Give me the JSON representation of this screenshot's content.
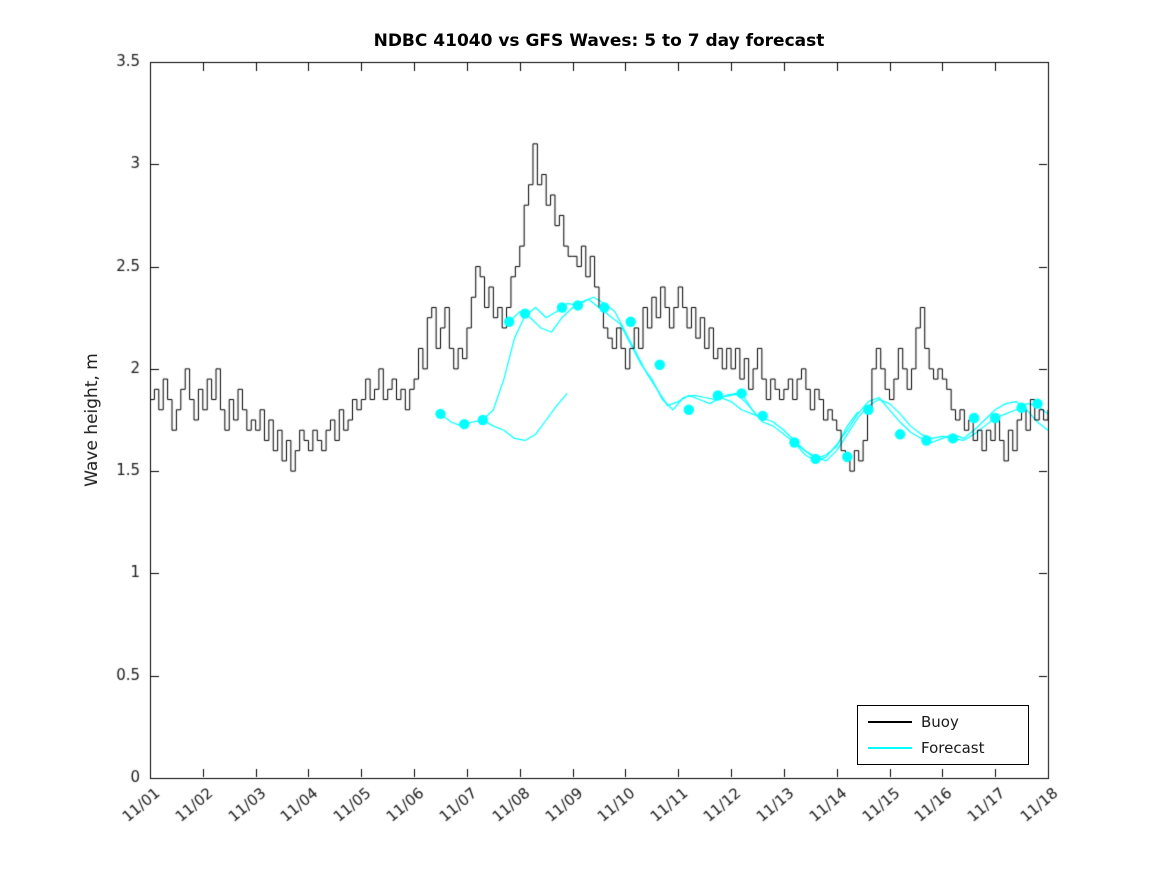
{
  "title": "NDBC 41040 vs GFS Waves: 5 to 7 day forecast",
  "colors": {
    "buoy": "#000000",
    "forecast": "#00ffff",
    "background": "#ffffff",
    "axes": "#000000"
  },
  "chart_data": {
    "type": "line",
    "title": "NDBC 41040 vs GFS Waves: 5 to 7 day forecast",
    "xlabel": "",
    "ylabel": "Wave height, m",
    "x_range": [
      0,
      17
    ],
    "y_range": [
      0,
      3.5
    ],
    "y_ticks": [
      0,
      0.5,
      1,
      1.5,
      2,
      2.5,
      3,
      3.5
    ],
    "x_tick_labels": [
      "11/01",
      "11/02",
      "11/03",
      "11/04",
      "11/05",
      "11/06",
      "11/07",
      "11/08",
      "11/09",
      "11/10",
      "11/11",
      "11/12",
      "11/13",
      "11/14",
      "11/15",
      "11/16",
      "11/17",
      "11/18"
    ],
    "grid": false,
    "legend": {
      "position": "bottom-right",
      "entries": [
        {
          "label": "Buoy",
          "color": "#000000"
        },
        {
          "label": "Forecast",
          "color": "#00ffff"
        }
      ]
    },
    "series": {
      "buoy": {
        "name": "Buoy",
        "color": "#000000",
        "units": "m",
        "start_day": 0,
        "samples_per_day": 12,
        "values": [
          1.85,
          1.9,
          1.8,
          1.95,
          1.85,
          1.7,
          1.8,
          1.9,
          2.0,
          1.85,
          1.75,
          1.9,
          1.8,
          1.95,
          1.85,
          2.0,
          1.8,
          1.7,
          1.85,
          1.75,
          1.9,
          1.8,
          1.7,
          1.75,
          1.7,
          1.8,
          1.65,
          1.75,
          1.6,
          1.7,
          1.55,
          1.65,
          1.5,
          1.6,
          1.7,
          1.65,
          1.6,
          1.7,
          1.65,
          1.6,
          1.7,
          1.75,
          1.65,
          1.8,
          1.7,
          1.75,
          1.85,
          1.8,
          1.85,
          1.95,
          1.85,
          1.9,
          2.0,
          1.85,
          1.9,
          1.95,
          1.85,
          1.9,
          1.8,
          1.9,
          1.95,
          2.1,
          2.0,
          2.25,
          2.3,
          2.1,
          2.2,
          2.3,
          2.1,
          2.0,
          2.1,
          2.05,
          2.2,
          2.35,
          2.5,
          2.45,
          2.3,
          2.4,
          2.25,
          2.3,
          2.2,
          2.3,
          2.45,
          2.5,
          2.6,
          2.8,
          2.9,
          3.1,
          2.9,
          2.95,
          2.8,
          2.85,
          2.7,
          2.75,
          2.6,
          2.55,
          2.55,
          2.5,
          2.6,
          2.45,
          2.55,
          2.4,
          2.3,
          2.2,
          2.15,
          2.1,
          2.2,
          2.1,
          2.0,
          2.1,
          2.2,
          2.1,
          2.3,
          2.2,
          2.35,
          2.25,
          2.4,
          2.3,
          2.2,
          2.3,
          2.4,
          2.3,
          2.2,
          2.3,
          2.15,
          2.25,
          2.1,
          2.2,
          2.05,
          2.1,
          2.0,
          2.1,
          2.0,
          2.1,
          1.95,
          2.05,
          1.9,
          2.0,
          2.1,
          1.95,
          1.85,
          1.95,
          1.9,
          1.85,
          1.9,
          1.95,
          1.85,
          1.95,
          2.0,
          1.9,
          1.8,
          1.9,
          1.85,
          1.75,
          1.8,
          1.75,
          1.7,
          1.6,
          1.55,
          1.5,
          1.6,
          1.55,
          1.65,
          1.8,
          2.0,
          2.1,
          2.0,
          1.9,
          1.85,
          1.95,
          2.1,
          2.0,
          1.9,
          2.0,
          2.2,
          2.3,
          2.1,
          2.0,
          1.95,
          2.0,
          1.95,
          1.9,
          1.8,
          1.75,
          1.8,
          1.7,
          1.75,
          1.65,
          1.7,
          1.6,
          1.7,
          1.65,
          1.75,
          1.65,
          1.55,
          1.7,
          1.6,
          1.75,
          1.8,
          1.7,
          1.85,
          1.75,
          1.8,
          1.75,
          1.8
        ]
      },
      "forecast": {
        "name": "Forecast",
        "color": "#00ffff",
        "units": "m",
        "segments": [
          {
            "x": [
              5.5,
              5.7,
              5.9,
              6.1,
              6.3,
              6.5,
              6.7,
              6.9,
              7.1,
              7.3,
              7.5,
              7.7,
              7.9
            ],
            "y": [
              1.78,
              1.74,
              1.72,
              1.74,
              1.75,
              1.72,
              1.7,
              1.66,
              1.65,
              1.68,
              1.75,
              1.82,
              1.88
            ]
          },
          {
            "x": [
              6.3,
              6.5,
              6.7,
              6.9,
              7.1,
              7.3,
              7.5,
              7.7,
              7.9,
              8.1,
              8.3,
              8.5,
              8.7,
              8.9,
              9.1,
              9.3,
              9.5,
              9.7,
              9.9,
              10.1,
              10.3,
              10.5,
              10.7,
              10.9,
              11.1,
              11.3,
              11.5
            ],
            "y": [
              1.75,
              1.8,
              1.95,
              2.15,
              2.26,
              2.3,
              2.25,
              2.28,
              2.32,
              2.31,
              2.34,
              2.3,
              2.26,
              2.22,
              2.12,
              2.02,
              1.95,
              1.85,
              1.8,
              1.86,
              1.87,
              1.86,
              1.85,
              1.87,
              1.88,
              1.83,
              1.77
            ]
          },
          {
            "x": [
              6.8,
              7.0,
              7.2,
              7.4,
              7.6,
              7.8,
              8.0,
              8.2,
              8.4,
              8.6,
              8.8,
              9.0,
              9.2,
              9.4,
              9.6,
              9.8,
              10.0,
              10.2,
              10.4,
              10.6,
              10.8,
              11.0,
              11.2,
              11.4,
              11.6,
              11.8,
              12.0,
              12.2,
              12.4,
              12.6,
              12.8,
              13.0,
              13.2,
              13.4
            ],
            "y": [
              2.23,
              2.28,
              2.25,
              2.2,
              2.18,
              2.25,
              2.3,
              2.33,
              2.35,
              2.32,
              2.28,
              2.18,
              2.08,
              1.98,
              1.9,
              1.82,
              1.84,
              1.87,
              1.85,
              1.83,
              1.86,
              1.87,
              1.88,
              1.8,
              1.74,
              1.72,
              1.68,
              1.64,
              1.6,
              1.56,
              1.58,
              1.62,
              1.72,
              1.79
            ]
          },
          {
            "x": [
              10.8,
              11.0,
              11.2,
              11.4,
              11.6,
              11.8,
              12.0,
              12.2,
              12.4,
              12.6,
              12.8,
              13.0,
              13.2,
              13.4,
              13.6,
              13.8,
              14.0,
              14.2,
              14.4,
              14.6,
              14.8,
              15.0,
              15.2,
              15.4,
              15.6,
              15.8,
              16.0,
              16.2,
              16.4,
              16.6,
              16.8,
              17.0
            ],
            "y": [
              1.86,
              1.84,
              1.8,
              1.78,
              1.76,
              1.74,
              1.7,
              1.65,
              1.6,
              1.57,
              1.55,
              1.6,
              1.68,
              1.76,
              1.82,
              1.85,
              1.83,
              1.78,
              1.72,
              1.68,
              1.66,
              1.67,
              1.66,
              1.65,
              1.68,
              1.72,
              1.76,
              1.78,
              1.8,
              1.83,
              1.82,
              1.78
            ]
          },
          {
            "x": [
              12.2,
              12.4,
              12.6,
              12.8,
              13.0,
              13.2,
              13.4,
              13.6,
              13.8,
              14.0,
              14.2,
              14.4,
              14.6,
              14.8,
              15.0,
              15.2,
              15.4,
              15.6,
              15.8,
              16.0,
              16.2,
              16.4,
              16.6,
              16.8,
              17.0
            ],
            "y": [
              1.64,
              1.58,
              1.55,
              1.57,
              1.63,
              1.7,
              1.78,
              1.84,
              1.86,
              1.8,
              1.74,
              1.69,
              1.66,
              1.64,
              1.66,
              1.68,
              1.66,
              1.7,
              1.75,
              1.8,
              1.83,
              1.84,
              1.8,
              1.74,
              1.7
            ]
          }
        ],
        "markers": {
          "x": [
            5.5,
            5.95,
            6.3,
            6.8,
            7.1,
            7.8,
            8.1,
            8.6,
            9.1,
            9.65,
            10.2,
            10.75,
            11.2,
            11.6,
            12.2,
            12.6,
            13.2,
            13.6,
            14.2,
            14.7,
            15.2,
            15.6,
            16.0,
            16.5,
            16.8
          ],
          "y": [
            1.78,
            1.73,
            1.75,
            2.23,
            2.27,
            2.3,
            2.31,
            2.3,
            2.23,
            2.02,
            1.8,
            1.87,
            1.88,
            1.77,
            1.64,
            1.56,
            1.57,
            1.8,
            1.68,
            1.65,
            1.66,
            1.76,
            1.76,
            1.81,
            1.83
          ]
        }
      }
    }
  }
}
